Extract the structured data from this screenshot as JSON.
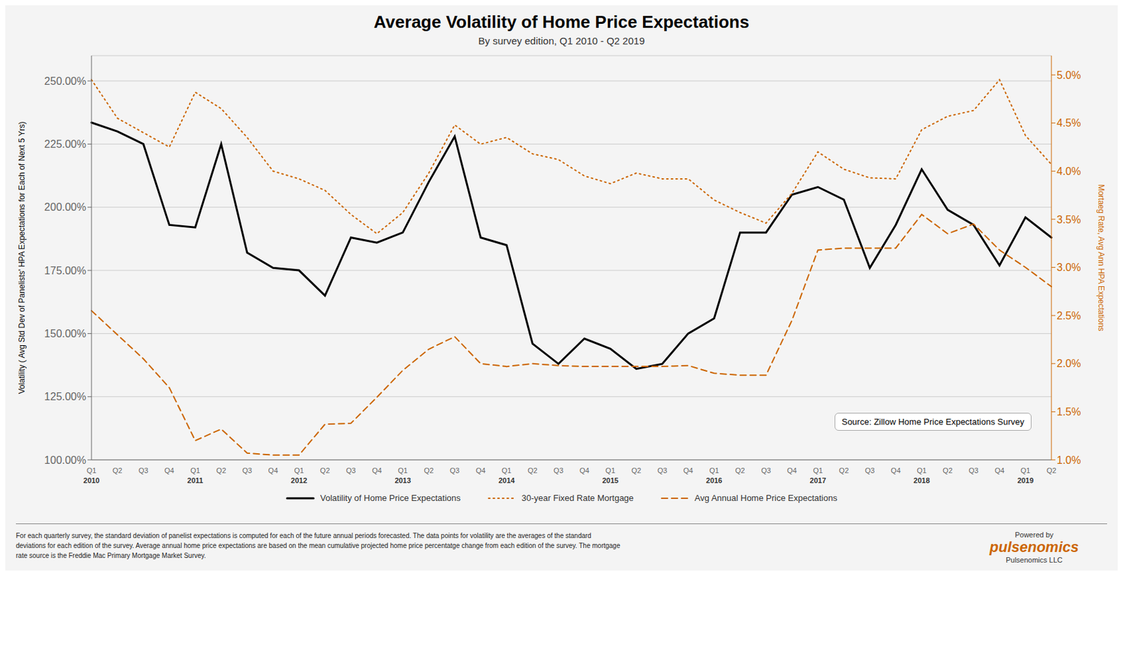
{
  "chart_data": {
    "type": "line",
    "title": "Average Volatility of Home Price Expectations",
    "subtitle": "By survey edition, Q1 2010 - Q2 2019",
    "ylabel": "Volatility ( Avg Std Dev of Panelists' HPA Expectations for Each of Next 5 Yrs)",
    "y2label": "Mortaeg Rate, Avg Ann HPA Expectations",
    "categories": [
      "Q1\n2010",
      "Q2",
      "Q3",
      "Q4",
      "Q1\n2011",
      "Q2",
      "Q3",
      "Q4",
      "Q1\n2012",
      "Q2",
      "Q3",
      "Q4",
      "Q1\n2013",
      "Q2",
      "Q3",
      "Q4",
      "Q1\n2014",
      "Q2",
      "Q3",
      "Q4",
      "Q1\n2015",
      "Q2",
      "Q3",
      "Q4",
      "Q1\n2016",
      "Q2",
      "Q3",
      "Q4",
      "Q1\n2017",
      "Q2",
      "Q3",
      "Q4",
      "Q1\n2018",
      "Q2",
      "Q3",
      "Q4",
      "Q1\n2019",
      "Q2"
    ],
    "series": [
      {
        "name": "Volatility of Home Price Expectations",
        "color": "#000000",
        "line_style": "solid",
        "axis": "y",
        "values": [
          2.335,
          2.3,
          2.25,
          1.93,
          1.92,
          2.25,
          1.82,
          1.76,
          1.75,
          1.65,
          1.88,
          1.86,
          1.9,
          2.1,
          2.28,
          1.88,
          1.85,
          1.46,
          1.38,
          1.48,
          1.44,
          1.36,
          1.38,
          1.5,
          1.56,
          1.9,
          1.9,
          2.05,
          2.08,
          2.03,
          1.76,
          1.93,
          2.15,
          1.99,
          1.93,
          1.77,
          1.96,
          1.88
        ]
      },
      {
        "name": "30-year Fixed Rate Mortgage",
        "color": "#CC6600",
        "line_style": "dotted",
        "axis": "y2",
        "values": [
          4.95,
          4.55,
          4.4,
          4.25,
          4.82,
          4.65,
          4.35,
          4.0,
          3.92,
          3.8,
          3.55,
          3.35,
          3.57,
          3.98,
          4.48,
          4.28,
          4.35,
          4.18,
          4.12,
          3.95,
          3.87,
          3.98,
          3.92,
          3.92,
          3.7,
          3.57,
          3.46,
          3.77,
          4.2,
          4.02,
          3.93,
          3.92,
          4.43,
          4.57,
          4.63,
          4.95,
          4.37,
          4.07
        ]
      },
      {
        "name": "Avg Annual Home Price Expectations",
        "color": "#CC6600",
        "line_style": "dashed",
        "axis": "y2",
        "values": [
          2.55,
          2.3,
          2.05,
          1.75,
          1.2,
          1.32,
          1.07,
          1.05,
          1.05,
          1.37,
          1.38,
          1.65,
          1.93,
          2.15,
          2.28,
          2.0,
          1.97,
          2.0,
          1.98,
          1.97,
          1.97,
          1.97,
          1.97,
          1.98,
          1.9,
          1.88,
          1.88,
          2.45,
          3.18,
          3.2,
          3.2,
          3.2,
          3.55,
          3.35,
          3.45,
          3.18,
          3.0,
          2.8
        ]
      }
    ],
    "ylim": [
      1.0,
      2.6
    ],
    "yticks": [
      {
        "value": 1.0,
        "label": "100.00%"
      },
      {
        "value": 1.25,
        "label": "125.00%"
      },
      {
        "value": 1.5,
        "label": "150.00%"
      },
      {
        "value": 1.75,
        "label": "175.00%"
      },
      {
        "value": 2.0,
        "label": "200.00%"
      },
      {
        "value": 2.25,
        "label": "225.00%"
      },
      {
        "value": 2.5,
        "label": "250.00%"
      }
    ],
    "y2lim": [
      1.0,
      5.2
    ],
    "y2ticks": [
      {
        "value": 1.0,
        "label": "1.0%"
      },
      {
        "value": 1.5,
        "label": "1.5%"
      },
      {
        "value": 2.0,
        "label": "2.0%"
      },
      {
        "value": 2.5,
        "label": "2.5%"
      },
      {
        "value": 3.0,
        "label": "3.0%"
      },
      {
        "value": 3.5,
        "label": "3.5%"
      },
      {
        "value": 4.0,
        "label": "4.0%"
      },
      {
        "value": 4.5,
        "label": "4.5%"
      },
      {
        "value": 5.0,
        "label": "5.0%"
      }
    ],
    "y2color": "#CC6600",
    "grid": true,
    "legend": "bottom",
    "annotations": [
      "Source: Zillow Home Price Expectations Survey"
    ],
    "footer": "For each quarterly survey, the standard deviation of panelist expectations is computed for each of the future annual periods forecasted. The data points for volatility are the averages of the standard\ndeviations for each edition of the survey. Average annual home price expectations are based on the mean cumulative projected home price percentatge change from each edition of the survey. The mortgage\nrate source is the Freddie Mac Primary Mortgage Market Survey.",
    "footer_logo": [
      "Powered by",
      "pulsenomics",
      "Pulsenomics LLC"
    ],
    "footer_logo_color": "#CC6600"
  }
}
